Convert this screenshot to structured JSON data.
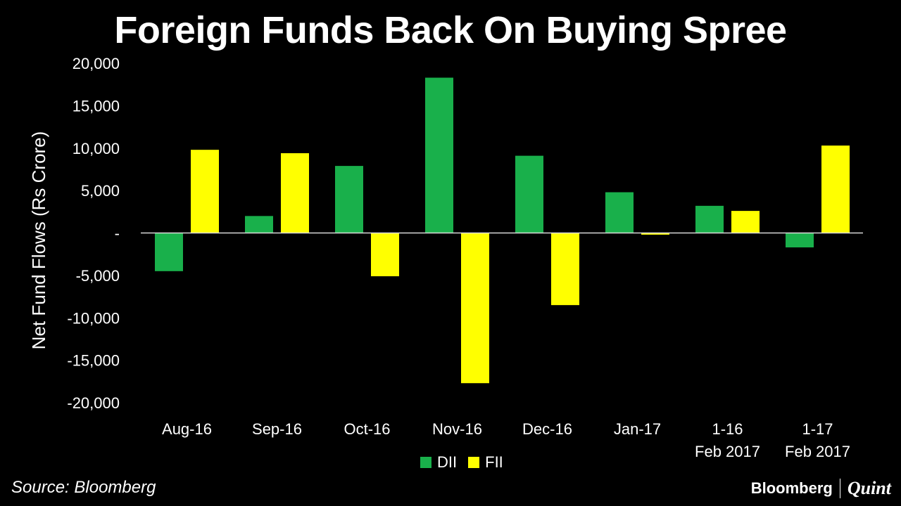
{
  "title": "Foreign Funds Back On Buying Spree",
  "source": "Source: Bloomberg",
  "brand": {
    "left": "Bloomberg",
    "right": "Quint"
  },
  "legend": [
    {
      "label": "DII",
      "color": "#19B04B"
    },
    {
      "label": "FII",
      "color": "#FFFF00"
    }
  ],
  "chart_data": {
    "type": "bar",
    "title": "Foreign Funds Back On Buying Spree",
    "ylabel": "Net Fund Flows (Rs Crore)",
    "xlabel": "",
    "ylim": [
      -20000,
      20000
    ],
    "yticks": [
      {
        "value": 20000,
        "label": "20,000"
      },
      {
        "value": 15000,
        "label": "15,000"
      },
      {
        "value": 10000,
        "label": "10,000"
      },
      {
        "value": 5000,
        "label": "5,000"
      },
      {
        "value": 0,
        "label": "-"
      },
      {
        "value": -5000,
        "label": "-5,000"
      },
      {
        "value": -10000,
        "label": "-10,000"
      },
      {
        "value": -15000,
        "label": "-15,000"
      },
      {
        "value": -20000,
        "label": "-20,000"
      }
    ],
    "categories": [
      [
        "Aug-16"
      ],
      [
        "Sep-16"
      ],
      [
        "Oct-16"
      ],
      [
        "Nov-16"
      ],
      [
        "Dec-16"
      ],
      [
        "Jan-17"
      ],
      [
        "1-16",
        "Feb 2017"
      ],
      [
        "1-17",
        "Feb 2017"
      ]
    ],
    "series": [
      {
        "name": "DII",
        "color": "#19B04B",
        "values": [
          -4500,
          2000,
          7900,
          18300,
          9100,
          4800,
          3200,
          -1700
        ]
      },
      {
        "name": "FII",
        "color": "#FFFF00",
        "values": [
          9800,
          9400,
          -5100,
          -17700,
          -8500,
          -200,
          2600,
          10300
        ]
      }
    ],
    "grid": false,
    "legend_position": "bottom"
  }
}
